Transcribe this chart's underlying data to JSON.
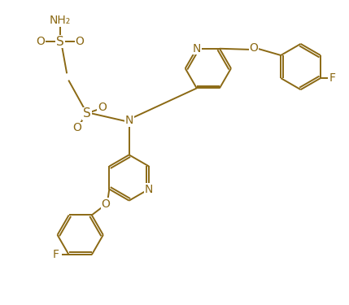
{
  "bg_color": "#ffffff",
  "line_color": "#8B6914",
  "text_color": "#8B6914",
  "line_width": 1.4,
  "font_size": 10,
  "figsize": [
    4.29,
    3.75
  ],
  "dpi": 100,
  "xlim": [
    0,
    10
  ],
  "ylim": [
    0,
    9
  ],
  "ring_r": 0.68,
  "dbl_off": 0.07
}
